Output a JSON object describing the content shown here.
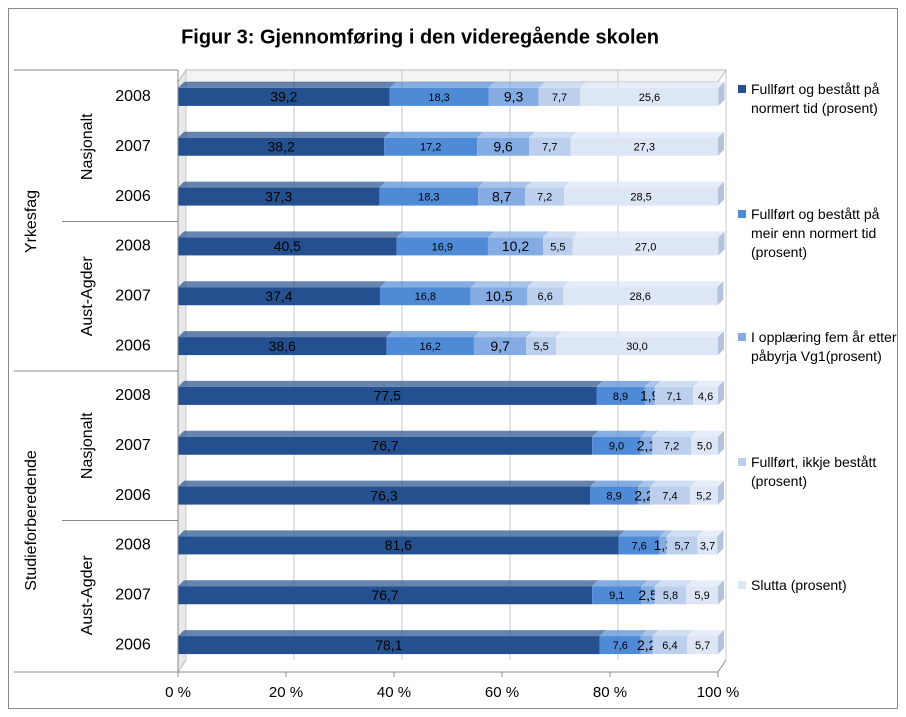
{
  "chart_data": {
    "type": "stacked_barh",
    "title": "Figur 3: Gjennomføring i den videregående skolen",
    "groups": [
      {
        "name": "Yrkesfag",
        "subgroups": [
          {
            "name": "Nasjonalt",
            "categories": [
              "2008",
              "2007",
              "2006"
            ]
          },
          {
            "name": "Aust-Agder",
            "categories": [
              "2008",
              "2007",
              "2006"
            ]
          }
        ]
      },
      {
        "name": "Studieforberedende",
        "subgroups": [
          {
            "name": "Nasjonalt",
            "categories": [
              "2008",
              "2007",
              "2006"
            ]
          },
          {
            "name": "Aust-Agder",
            "categories": [
              "2008",
              "2007",
              "2006"
            ]
          }
        ]
      }
    ],
    "series": [
      {
        "name": "Fullført og bestått på normert tid (prosent)",
        "color": "#25508f",
        "values": [
          39.2,
          38.2,
          37.3,
          40.5,
          37.4,
          38.6,
          77.5,
          76.7,
          76.3,
          81.6,
          76.7,
          78.1
        ],
        "value_labels": [
          "39,2",
          "38,2",
          "37,3",
          "40,5",
          "37,4",
          "38,6",
          "77,5",
          "76,7",
          "76,3",
          "81,6",
          "76,7",
          "78,1"
        ]
      },
      {
        "name": "Fullført og bestått på meir enn normert tid (prosent)",
        "color": "#4f8ad6",
        "values": [
          18.3,
          17.2,
          18.3,
          16.9,
          16.8,
          16.2,
          8.9,
          9.0,
          8.9,
          7.6,
          9.1,
          7.6
        ],
        "value_labels": [
          "18,3",
          "17,2",
          "18,3",
          "16,9",
          "16,8",
          "16,2",
          "8,9",
          "9,0",
          "8,9",
          "7,6",
          "9,1",
          "7,6"
        ]
      },
      {
        "name": "I opplæring fem år etter påbyrja Vg1(prosent)",
        "color": "#85abe3",
        "values": [
          9.3,
          9.6,
          8.7,
          10.2,
          10.5,
          9.7,
          1.9,
          2.1,
          2.2,
          1.3,
          2.5,
          2.2
        ],
        "value_labels": [
          "9,3",
          "9,6",
          "8,7",
          "10,2",
          "10,5",
          "9,7",
          "1,9",
          "2,1",
          "2,2",
          "1,3",
          "2,5",
          "2,2"
        ]
      },
      {
        "name": "Fullført, ikkje bestått (prosent)",
        "color": "#bcd0ee",
        "values": [
          7.7,
          7.7,
          7.2,
          5.5,
          6.6,
          5.5,
          7.1,
          7.2,
          7.4,
          5.7,
          5.8,
          6.4
        ],
        "value_labels": [
          "7,7",
          "7,7",
          "7,2",
          "5,5",
          "6,6",
          "5,5",
          "7,1",
          "7,2",
          "7,4",
          "5,7",
          "5,8",
          "6,4"
        ]
      },
      {
        "name": "Slutta (prosent)",
        "color": "#dce6f5",
        "values": [
          25.6,
          27.3,
          28.5,
          27.0,
          28.6,
          30.0,
          4.6,
          5.0,
          5.2,
          3.7,
          5.9,
          5.7
        ],
        "value_labels": [
          "25,6",
          "27,3",
          "28,5",
          "27,0",
          "28,6",
          "30,0",
          "4,6",
          "5,0",
          "5,2",
          "3,7",
          "5,9",
          "5,7"
        ]
      }
    ],
    "xlim": [
      0,
      100
    ],
    "xticks": [
      {
        "value": 0,
        "label": "0 %"
      },
      {
        "value": 20,
        "label": "20 %"
      },
      {
        "value": 40,
        "label": "40 %"
      },
      {
        "value": 60,
        "label": "60 %"
      },
      {
        "value": 80,
        "label": "80 %"
      },
      {
        "value": 100,
        "label": "100 %"
      }
    ],
    "grid": true,
    "legend": "right"
  }
}
